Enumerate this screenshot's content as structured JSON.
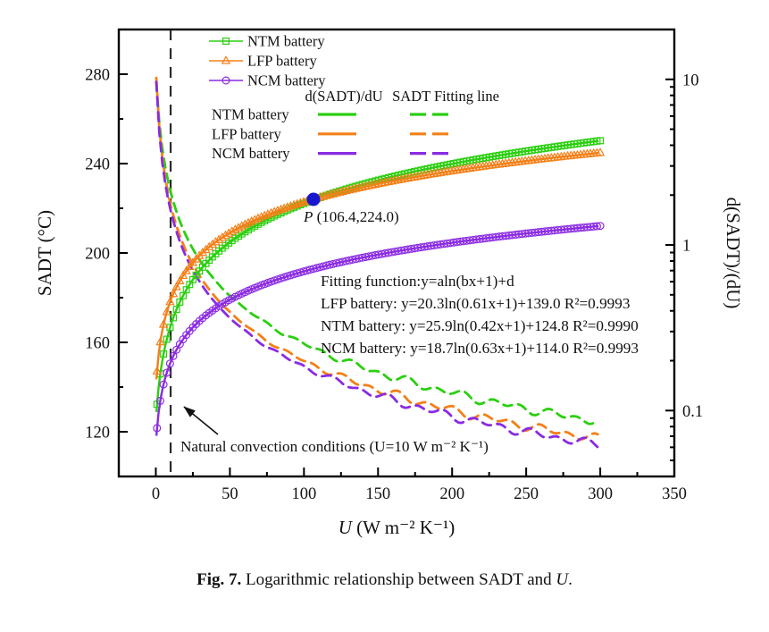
{
  "figure": {
    "caption_label": "Fig. 7.",
    "caption_body": " Logarithmic relationship between SADT and ",
    "caption_u": "U",
    "caption_period": "."
  },
  "chart_data": {
    "type": "line",
    "title": "",
    "x_axis": {
      "label": "U (W m⁻² K⁻¹)",
      "label_italic": "U",
      "label_rest": " (W m⁻² K⁻¹)",
      "ticks": [
        0,
        50,
        100,
        150,
        200,
        250,
        300,
        350
      ],
      "minor_step": 25,
      "xlim": [
        -25,
        350
      ]
    },
    "y_left": {
      "label": "SADT (°C)",
      "ticks": [
        120,
        160,
        200,
        240,
        280
      ],
      "minor_step": 20,
      "ylim": [
        100,
        300
      ]
    },
    "y_right": {
      "label": "d(SADT)/(dU)",
      "scale": "log",
      "ticks": [
        10,
        1,
        0.1
      ],
      "tick_labels": [
        "10",
        "1",
        "0.1"
      ],
      "ylim": [
        0.04,
        20
      ]
    },
    "colors": {
      "ntm": "#2bcf10",
      "lfp": "#f38019",
      "ncm": "#8a2be2",
      "point": "#1616cf",
      "vline": "#2a2a2a",
      "frame": "#000000"
    },
    "sample_x": [
      0,
      25,
      50,
      75,
      100,
      125,
      150,
      175,
      200,
      225,
      250,
      275,
      300
    ],
    "series_sadt": [
      {
        "name": "NTM battery",
        "marker": "square",
        "color": "#2bcf10",
        "fit": {
          "a": 25.9,
          "b": 0.42,
          "d": 124.8
        },
        "r2": "0.9990",
        "values": [
          124.8,
          188.1,
          204.9,
          215.0,
          222.2,
          227.9,
          232.5,
          236.4,
          239.9,
          242.9,
          245.6,
          248.0,
          250.3
        ]
      },
      {
        "name": "LFP battery",
        "marker": "triangle",
        "color": "#f38019",
        "fit": {
          "a": 20.3,
          "b": 0.61,
          "d": 139.0
        },
        "r2": "0.9993",
        "values": [
          139.0,
          195.6,
          209.0,
          217.0,
          222.8,
          227.2,
          230.9,
          234.0,
          236.7,
          239.1,
          241.2,
          243.1,
          244.9
        ]
      },
      {
        "name": "NCM battery",
        "marker": "circle",
        "color": "#8a2be2",
        "fit": {
          "a": 18.7,
          "b": 0.63,
          "d": 114.0
        },
        "r2": "0.9993",
        "values": [
          114.0,
          166.7,
          179.1,
          186.5,
          191.8,
          195.9,
          199.3,
          202.1,
          204.6,
          206.8,
          208.7,
          210.5,
          212.1
        ]
      }
    ],
    "series_derivative": [
      {
        "name": "NTM battery",
        "color": "#2bcf10",
        "values": [
          10.88,
          0.946,
          0.494,
          0.335,
          0.253,
          0.204,
          0.17,
          0.146,
          0.128,
          0.114,
          0.103,
          0.093,
          0.086
        ]
      },
      {
        "name": "LFP battery",
        "color": "#f38019",
        "values": [
          12.38,
          0.762,
          0.393,
          0.265,
          0.2,
          0.16,
          0.134,
          0.115,
          0.101,
          0.09,
          0.081,
          0.073,
          0.067
        ]
      },
      {
        "name": "NCM battery",
        "color": "#8a2be2",
        "values": [
          11.78,
          0.703,
          0.363,
          0.244,
          0.184,
          0.148,
          0.123,
          0.106,
          0.093,
          0.083,
          0.074,
          0.067,
          0.062
        ]
      }
    ],
    "legend_markers": {
      "items": [
        {
          "label": "NTM battery",
          "marker": "square",
          "color": "#2bcf10"
        },
        {
          "label": "LFP battery",
          "marker": "triangle",
          "color": "#f38019"
        },
        {
          "label": "NCM battery",
          "marker": "circle",
          "color": "#8a2be2"
        }
      ]
    },
    "legend_lines": {
      "col1_header": "d(SADT)/dU",
      "col2_header": "SADT Fitting line",
      "rows": [
        {
          "label": "NTM battery",
          "color": "#2bcf10"
        },
        {
          "label": "LFP battery",
          "color": "#f38019"
        },
        {
          "label": "NCM battery",
          "color": "#8a2be2"
        }
      ]
    },
    "annotations": {
      "point": {
        "label_italic": "P",
        "label_rest": " (106.4,224.0)",
        "x": 106.4,
        "y": 224.0,
        "color": "#1616cf"
      },
      "vline_x": 10,
      "convection_text": "Natural convection conditions (U=10 W m⁻² K⁻¹)",
      "fit_text": [
        "Fitting function:y=aln(bx+1)+d",
        "LFP battery: y=20.3ln(0.61x+1)+139.0 R²=0.9993",
        "NTM battery: y=25.9ln(0.42x+1)+124.8 R²=0.9990",
        "NCM battery: y=18.7ln(0.63x+1)+114.0 R²=0.9993"
      ]
    }
  }
}
